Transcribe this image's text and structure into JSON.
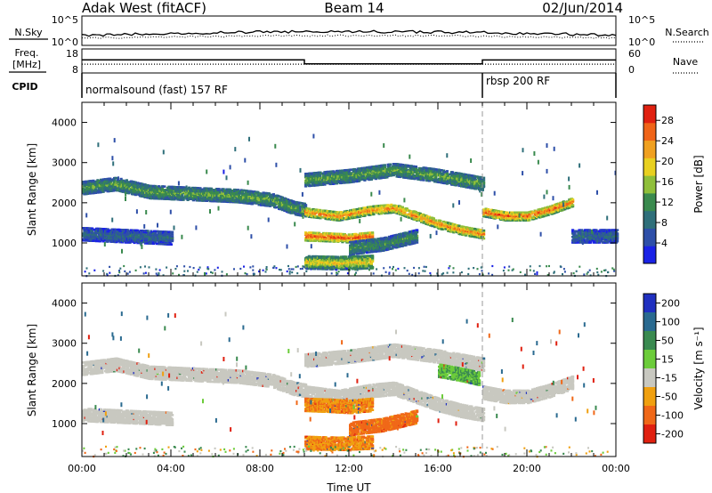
{
  "header": {
    "station": "Adak West (fitACF)",
    "beam": "Beam 14",
    "date": "02/Jun/2014"
  },
  "noise_panel": {
    "left_label": "N.Sky",
    "right_label": "N.Search",
    "yticks_left": [
      "10^5",
      "10^0"
    ],
    "yticks_right": [
      "10^5",
      "10^0"
    ]
  },
  "freq_panel": {
    "left_label_line1": "Freq.",
    "left_label_line2": "[MHz]",
    "right_label": "Nave",
    "yticks_left": [
      "18",
      "8"
    ],
    "yticks_right": [
      "60",
      "0"
    ],
    "freq_segments_hours": [
      [
        0,
        10.0
      ],
      [
        10.0,
        18.0
      ],
      [
        18.0,
        24.0
      ]
    ],
    "freq_values_mhz": [
      13.5,
      11.8,
      13.4
    ],
    "nave_values": [
      22,
      22,
      22
    ]
  },
  "cpid_panel": {
    "label": "CPID",
    "modes": [
      {
        "text": "normalsound (fast) 157 RF",
        "start_hour": 0
      },
      {
        "text": "rbsp 200 RF",
        "start_hour": 18.0
      }
    ]
  },
  "x_axis": {
    "label": "Time UT",
    "ticks": [
      "00:00",
      "04:00",
      "08:00",
      "12:00",
      "16:00",
      "20:00",
      "00:00"
    ],
    "range_hours": [
      0,
      24
    ]
  },
  "chart_data": [
    {
      "type": "heatmap",
      "title": "",
      "xlabel": "",
      "ylabel": "Slant Range [km]",
      "xlim_hours": [
        0,
        24
      ],
      "ylim_km": [
        180,
        4500
      ],
      "yticks": [
        1000,
        2000,
        3000,
        4000
      ],
      "colorbar": {
        "label": "Power [dB]",
        "ticks": [
          4,
          8,
          12,
          16,
          20,
          24,
          28
        ],
        "range": [
          0,
          31
        ],
        "colors": [
          "#1a22e6",
          "#2e4fa8",
          "#2f6f7a",
          "#3a8a4e",
          "#8fbf3a",
          "#e8d020",
          "#f0a020",
          "#f06418",
          "#e02010"
        ]
      },
      "echo_bands": [
        {
          "t": [
            0.0,
            1.5,
            3.0,
            5.0,
            7.0,
            8.5,
            9.5,
            10.0
          ],
          "km": [
            2400,
            2500,
            2300,
            2250,
            2200,
            2100,
            1900,
            1850
          ],
          "db": 14
        },
        {
          "t": [
            10.0,
            11.5,
            13.0,
            14.0,
            15.0,
            16.0,
            17.0,
            18.0
          ],
          "km": [
            1800,
            1700,
            1850,
            1900,
            1700,
            1500,
            1350,
            1250
          ],
          "db": 25
        },
        {
          "t": [
            10.0,
            11.0,
            12.0,
            13.0
          ],
          "km": [
            1200,
            1180,
            1150,
            1200
          ],
          "db": 28
        },
        {
          "t": [
            18.0,
            19.0,
            20.0,
            21.0,
            22.0
          ],
          "km": [
            1800,
            1700,
            1700,
            1850,
            2050
          ],
          "db": 26
        },
        {
          "t": [
            0.0,
            2.0,
            4.0
          ],
          "km": [
            1250,
            1200,
            1150
          ],
          "db": 8
        },
        {
          "t": [
            10.0,
            12.0,
            14.0,
            16.0,
            18.0
          ],
          "km": [
            2600,
            2700,
            2850,
            2700,
            2500
          ],
          "db": 14
        },
        {
          "t": [
            10.0,
            11.5,
            13.0
          ],
          "km": [
            550,
            530,
            560
          ],
          "db": 20
        },
        {
          "t": [
            12.0,
            13.5,
            15.0
          ],
          "km": [
            900,
            1000,
            1200
          ],
          "db": 12
        },
        {
          "t": [
            22.0,
            23.0,
            24.0
          ],
          "km": [
            1200,
            1200,
            1200
          ],
          "db": 8
        }
      ]
    },
    {
      "type": "heatmap",
      "title": "",
      "xlabel": "Time UT",
      "ylabel": "Slant Range [km]",
      "xlim_hours": [
        0,
        24
      ],
      "ylim_km": [
        180,
        4500
      ],
      "yticks": [
        1000,
        2000,
        3000,
        4000
      ],
      "colorbar": {
        "label": "Velocity [m s⁻¹]",
        "ticks": [
          "200",
          "100",
          "50",
          "15",
          "-15",
          "-50",
          "-100",
          "-200"
        ],
        "colors": [
          "#2030c0",
          "#2a6a90",
          "#3a8a50",
          "#6ccc3a",
          "#c8c8c0",
          "#f0a010",
          "#f06818",
          "#e02010"
        ]
      },
      "echo_bands": [
        {
          "t": [
            0.0,
            1.5,
            3.0,
            5.0,
            7.0,
            8.5,
            9.5,
            10.0
          ],
          "km": [
            2400,
            2500,
            2300,
            2250,
            2200,
            2100,
            1900,
            1850
          ],
          "v": 0
        },
        {
          "t": [
            10.0,
            11.5,
            13.0,
            14.0,
            15.0,
            16.0,
            17.0,
            18.0
          ],
          "km": [
            1800,
            1700,
            1850,
            1900,
            1700,
            1500,
            1350,
            1250
          ],
          "v": 0
        },
        {
          "t": [
            10.0,
            11.0,
            12.0,
            13.0
          ],
          "km": [
            1500,
            1480,
            1450,
            1500
          ],
          "v": -30
        },
        {
          "t": [
            18.0,
            19.0,
            20.0,
            21.0,
            22.0
          ],
          "km": [
            1800,
            1700,
            1700,
            1850,
            2050
          ],
          "v": 0
        },
        {
          "t": [
            10.0,
            12.0,
            14.0,
            16.0,
            18.0
          ],
          "km": [
            2600,
            2700,
            2850,
            2700,
            2500
          ],
          "v": 0
        },
        {
          "t": [
            16.0,
            17.0,
            17.8
          ],
          "km": [
            2350,
            2250,
            2150
          ],
          "v": 30
        },
        {
          "t": [
            10.0,
            11.5,
            13.0
          ],
          "km": [
            550,
            530,
            560
          ],
          "v": -30
        },
        {
          "t": [
            12.0,
            13.5,
            15.0
          ],
          "km": [
            900,
            1000,
            1200
          ],
          "v": -40
        },
        {
          "t": [
            0.0,
            2.0,
            4.0
          ],
          "km": [
            1250,
            1200,
            1150
          ],
          "v": 0
        }
      ]
    }
  ]
}
